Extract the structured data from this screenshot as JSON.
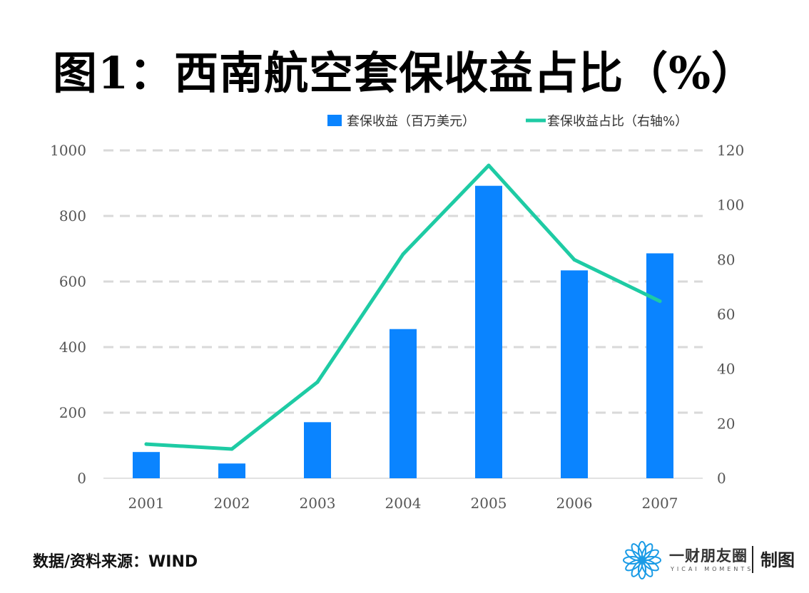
{
  "title": "图1：西南航空套保收益占比（%）",
  "source": "数据/资料来源：WIND",
  "brand": {
    "name": "一财朋友圈",
    "english": "YICAI MOMENTS",
    "made": "制图",
    "logo_icon": "snowflake-flower-icon"
  },
  "colors": {
    "bar": "#0a84ff",
    "line": "#1ecba4",
    "grid": "#d9d9d9",
    "brand": "#1a9be6"
  },
  "chart_data": {
    "type": "bar",
    "categories": [
      "2001",
      "2002",
      "2003",
      "2004",
      "2005",
      "2006",
      "2007"
    ],
    "series": [
      {
        "name": "套保收益（百万美元）",
        "type": "bar",
        "axis": "left",
        "values": [
          80,
          45,
          171,
          455,
          892,
          634,
          686
        ]
      },
      {
        "name": "套保收益占比（右轴%）",
        "type": "line",
        "axis": "right",
        "values": [
          12.5,
          10.7,
          35.2,
          82.0,
          114.5,
          80.0,
          64.8
        ]
      }
    ],
    "y_left": {
      "ylim": [
        0,
        1000
      ],
      "ticks": [
        0,
        200,
        400,
        600,
        800,
        1000
      ]
    },
    "y_right": {
      "ylim": [
        0,
        120
      ],
      "ticks": [
        0,
        20,
        40,
        60,
        80,
        100,
        120
      ]
    },
    "grid": true,
    "legend_position": "top-right"
  }
}
